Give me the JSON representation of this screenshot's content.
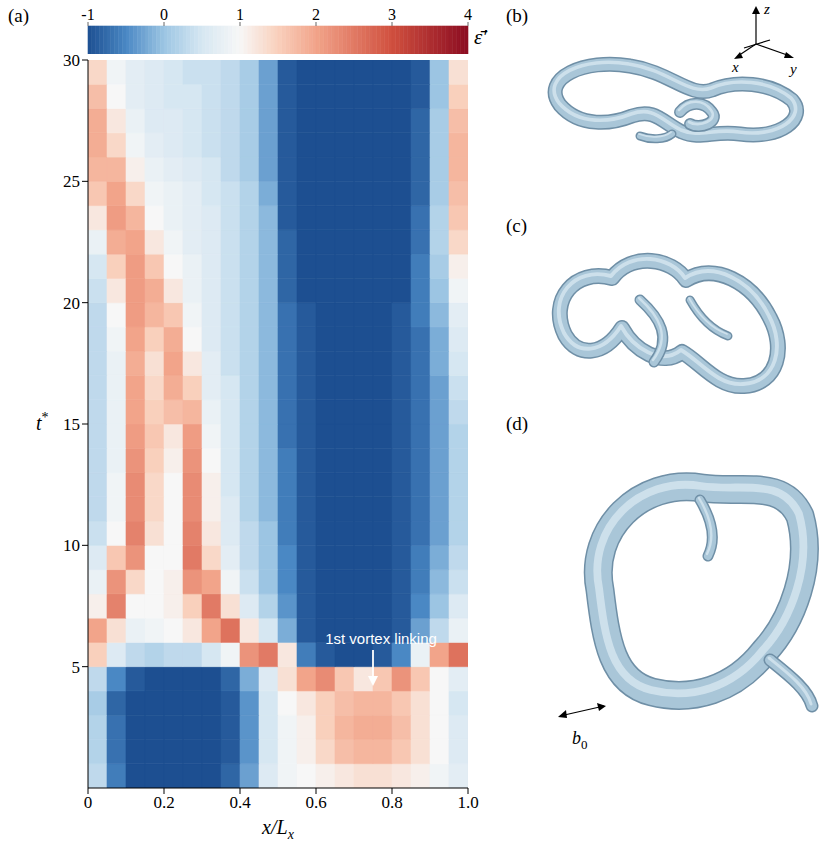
{
  "chart_data": {
    "type": "heatmap",
    "panel": "(a)",
    "x_label": {
      "text": "x/L",
      "subscript": "x"
    },
    "y_label": {
      "text": "t",
      "superscript": "*"
    },
    "xlim": [
      0,
      1
    ],
    "xticks": [
      0,
      0.2,
      0.4,
      0.6,
      0.8,
      {
        "value": 1,
        "label": "1.0"
      }
    ],
    "ylim": [
      0,
      30
    ],
    "yticks": [
      5,
      10,
      15,
      20,
      25,
      30
    ],
    "x_bins": [
      0,
      0.05,
      0.1,
      0.15,
      0.2,
      0.25,
      0.3,
      0.35,
      0.4,
      0.45,
      0.5,
      0.55,
      0.6,
      0.65,
      0.7,
      0.75,
      0.8,
      0.85,
      0.9,
      0.95,
      1.0
    ],
    "y_bins": [
      0,
      1,
      2,
      3,
      4,
      5,
      6,
      7,
      8,
      9,
      10,
      11,
      12,
      13,
      14,
      15,
      16,
      17,
      18,
      19,
      20,
      21,
      22,
      23,
      24,
      25,
      26,
      27,
      28,
      29,
      30
    ],
    "cells": [
      [
        0.3,
        -0.6,
        -1,
        -1,
        -1,
        -1,
        -1,
        -0.8,
        -0.3,
        0.6,
        0.9,
        1.0,
        1.1,
        1.2,
        1.3,
        1.3,
        1.2,
        1.1,
        0.9,
        0.7
      ],
      [
        0.2,
        -0.7,
        -1,
        -1,
        -1,
        -1,
        -1,
        -0.9,
        -0.4,
        0.5,
        0.9,
        1.1,
        1.4,
        1.7,
        1.8,
        1.8,
        1.6,
        1.3,
        1.0,
        0.6
      ],
      [
        0.2,
        -0.7,
        -1,
        -1,
        -1,
        -1,
        -1,
        -0.9,
        -0.4,
        0.5,
        0.9,
        1.1,
        1.5,
        1.8,
        1.9,
        1.9,
        1.7,
        1.3,
        1.0,
        0.6
      ],
      [
        0.1,
        -0.8,
        -1,
        -1,
        -1,
        -1,
        -1,
        -0.9,
        -0.4,
        0.5,
        1.0,
        1.2,
        1.5,
        1.7,
        1.8,
        1.8,
        1.6,
        1.3,
        1.0,
        0.5
      ],
      [
        0.3,
        -0.5,
        -0.9,
        -1,
        -1,
        -1,
        -1,
        -0.8,
        -0.2,
        0.6,
        1.3,
        2.0,
        2.3,
        1.6,
        1.2,
        1.6,
        2.2,
        1.6,
        1.0,
        0.7
      ],
      [
        1.5,
        0.6,
        0.3,
        0.2,
        0.3,
        0.3,
        0.5,
        0.9,
        2.2,
        2.5,
        1.2,
        -0.6,
        -0.9,
        -1,
        -1,
        -0.9,
        -0.5,
        0.8,
        2.0,
        2.6
      ],
      [
        2.0,
        1.3,
        0.8,
        0.9,
        1.0,
        1.2,
        2.0,
        2.6,
        1.2,
        0.5,
        -0.2,
        -0.9,
        -1,
        -1,
        -1,
        -1,
        -0.9,
        -0.3,
        0.3,
        0.8
      ],
      [
        1.1,
        2.4,
        1.0,
        1.0,
        1.1,
        1.5,
        2.5,
        1.3,
        0.6,
        0.2,
        -0.4,
        -0.9,
        -1,
        -1,
        -1,
        -1,
        -0.9,
        -0.5,
        0,
        0.6
      ],
      [
        0.8,
        2.2,
        1.4,
        1.0,
        1.1,
        2.2,
        2.0,
        0.9,
        0.4,
        0,
        -0.5,
        -0.9,
        -1,
        -1,
        -1,
        -1,
        -0.9,
        -0.6,
        -0.1,
        0.4
      ],
      [
        0.6,
        1.6,
        2.2,
        1.0,
        1.0,
        2.5,
        1.4,
        0.7,
        0.3,
        0,
        -0.5,
        -0.9,
        -1,
        -1,
        -1,
        -1,
        -0.9,
        -0.6,
        -0.2,
        0.3
      ],
      [
        0.4,
        1.0,
        2.4,
        1.3,
        1.0,
        2.4,
        1.2,
        0.6,
        0.3,
        0,
        -0.6,
        -0.9,
        -1,
        -1,
        -1,
        -1,
        -0.9,
        -0.7,
        -0.3,
        0.2
      ],
      [
        0.3,
        0.9,
        2.3,
        1.4,
        1.0,
        2.3,
        1.1,
        0.6,
        0.2,
        -0.1,
        -0.6,
        -0.9,
        -1,
        -1,
        -1,
        -1,
        -0.9,
        -0.7,
        -0.3,
        0.2
      ],
      [
        0.3,
        0.9,
        2.3,
        1.4,
        1.0,
        2.3,
        1.1,
        0.5,
        0.2,
        -0.1,
        -0.6,
        -0.9,
        -1,
        -1,
        -1,
        -1,
        -0.9,
        -0.7,
        -0.3,
        0.2
      ],
      [
        0.3,
        0.8,
        2.2,
        1.5,
        1.1,
        2.2,
        1.0,
        0.5,
        0.2,
        -0.1,
        -0.6,
        -0.9,
        -1,
        -1,
        -1,
        -1,
        -0.9,
        -0.7,
        -0.3,
        0.2
      ],
      [
        0.3,
        0.8,
        2.1,
        1.6,
        1.2,
        2.1,
        0.9,
        0.5,
        0.2,
        -0.1,
        -0.7,
        -0.9,
        -1,
        -1,
        -1,
        -1,
        -0.9,
        -0.7,
        -0.3,
        0.2
      ],
      [
        0.3,
        0.8,
        2.0,
        1.5,
        1.7,
        1.8,
        0.8,
        0.5,
        0.2,
        -0.1,
        -0.7,
        -0.9,
        -1,
        -1,
        -1,
        -1,
        -0.9,
        -0.7,
        -0.3,
        0.3
      ],
      [
        0.3,
        0.8,
        2.0,
        1.4,
        1.9,
        1.5,
        0.7,
        0.5,
        0.2,
        -0.1,
        -0.7,
        -0.9,
        -1,
        -1,
        -1,
        -1,
        -0.9,
        -0.7,
        -0.3,
        0.4
      ],
      [
        0.3,
        0.8,
        1.9,
        1.3,
        2.0,
        1.2,
        0.7,
        0.4,
        0.2,
        -0.1,
        -0.7,
        -0.9,
        -1,
        -1,
        -1,
        -1,
        -0.9,
        -0.7,
        -0.2,
        0.5
      ],
      [
        0.3,
        0.9,
        2.0,
        1.5,
        1.9,
        1.0,
        0.6,
        0.4,
        0.2,
        -0.1,
        -0.7,
        -0.9,
        -1,
        -1,
        -1,
        -1,
        -0.9,
        -0.7,
        -0.2,
        0.6
      ],
      [
        0.3,
        1.0,
        2.1,
        1.8,
        1.6,
        0.9,
        0.6,
        0.4,
        0.2,
        -0.1,
        -0.7,
        -0.9,
        -1,
        -1,
        -1,
        -1,
        -0.9,
        -0.6,
        -0.1,
        0.7
      ],
      [
        0.4,
        1.2,
        2.1,
        1.9,
        1.2,
        0.8,
        0.6,
        0.4,
        0.2,
        -0.1,
        -0.8,
        -1,
        -1,
        -1,
        -1,
        -1,
        -1,
        -0.6,
        0,
        0.9
      ],
      [
        0.5,
        1.5,
        2.1,
        1.6,
        1.0,
        0.8,
        0.6,
        0.4,
        0.2,
        -0.1,
        -0.8,
        -1,
        -1,
        -1,
        -1,
        -1,
        -1,
        -0.6,
        0.1,
        1.1
      ],
      [
        0.8,
        1.9,
        2.0,
        1.2,
        0.9,
        0.7,
        0.6,
        0.4,
        0.2,
        -0.1,
        -0.8,
        -1,
        -1,
        -1,
        -1,
        -1,
        -1,
        -0.7,
        0.2,
        1.4
      ],
      [
        1.2,
        2.1,
        1.8,
        1.0,
        0.8,
        0.7,
        0.6,
        0.4,
        0.2,
        -0.1,
        -0.9,
        -1,
        -1,
        -1,
        -1,
        -1,
        -1,
        -0.7,
        0.2,
        1.6
      ],
      [
        1.6,
        2.0,
        1.4,
        0.9,
        0.8,
        0.7,
        0.5,
        0.4,
        0.2,
        -0.2,
        -0.9,
        -1,
        -1,
        -1,
        -1,
        -1,
        -1,
        -0.8,
        0.1,
        1.7
      ],
      [
        1.8,
        1.8,
        1.1,
        0.8,
        0.7,
        0.6,
        0.5,
        0.3,
        0.1,
        -0.3,
        -0.9,
        -1,
        -1,
        -1,
        -1,
        -1,
        -1,
        -0.8,
        0.1,
        1.8
      ],
      [
        1.9,
        1.4,
        0.9,
        0.7,
        0.6,
        0.5,
        0.4,
        0.3,
        0.1,
        -0.3,
        -0.9,
        -1,
        -1,
        -1,
        -1,
        -1,
        -1,
        -0.8,
        0.1,
        1.8
      ],
      [
        1.9,
        1.2,
        0.8,
        0.6,
        0.6,
        0.5,
        0.4,
        0.3,
        0.1,
        -0.3,
        -0.9,
        -1,
        -1,
        -1,
        -1,
        -1,
        -1,
        -0.8,
        0.1,
        1.7
      ],
      [
        1.7,
        1.0,
        0.7,
        0.6,
        0.5,
        0.5,
        0.4,
        0.3,
        0.1,
        -0.3,
        -0.9,
        -1,
        -1,
        -1,
        -1,
        -1,
        -1,
        -0.9,
        0,
        1.5
      ],
      [
        1.4,
        0.9,
        0.7,
        0.6,
        0.5,
        0.4,
        0.4,
        0.3,
        0.1,
        -0.3,
        -0.9,
        -1,
        -1,
        -1,
        -1,
        -1,
        -1,
        -0.9,
        0,
        1.3
      ]
    ],
    "colorbar": {
      "label": "ε̄′",
      "range": [
        -1,
        4
      ],
      "ticks": [
        -1,
        0,
        1,
        2,
        3,
        4
      ]
    },
    "annotation": {
      "text": "1st vortex linking",
      "x": 0.75,
      "y": 4.2
    }
  },
  "renderings": [
    {
      "panel": "(b)"
    },
    {
      "panel": "(c)"
    },
    {
      "panel": "(d)",
      "scale_label": {
        "text": "b",
        "subscript": "0"
      }
    }
  ],
  "axes_triad": [
    "x",
    "y",
    "z"
  ]
}
